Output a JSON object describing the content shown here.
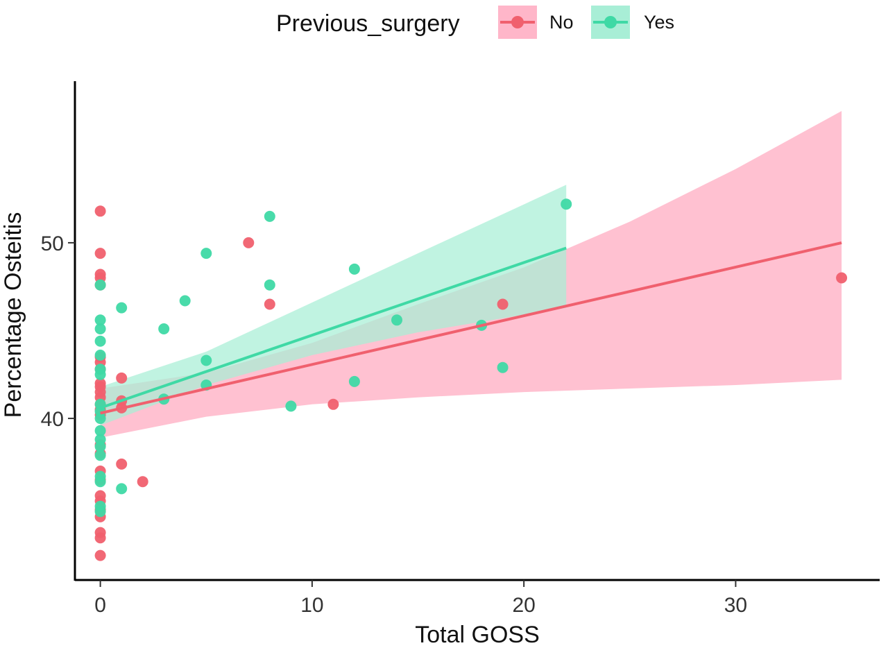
{
  "chart_data": {
    "type": "scatter",
    "title": "",
    "xlabel": "Total GOSS",
    "ylabel": "Percentage Osteitis",
    "xlim": [
      -1.2,
      36.8
    ],
    "ylim": [
      30.8,
      59.2
    ],
    "x_ticks": [
      0,
      10,
      20,
      30
    ],
    "x_tick_labels": [
      "0",
      "10",
      "20",
      "30"
    ],
    "y_ticks": [
      40,
      50
    ],
    "y_tick_labels": [
      "40",
      "50"
    ],
    "grid": false,
    "legend": {
      "title": "Previous_surgery",
      "position": "top",
      "entries": [
        "No",
        "Yes"
      ]
    },
    "series": [
      {
        "name": "No",
        "color": "#F0606E",
        "band_color": "#FFB6C9",
        "points": [
          [
            0,
            51.8
          ],
          [
            0,
            49.4
          ],
          [
            0,
            48.2
          ],
          [
            0,
            48.0
          ],
          [
            0,
            47.6
          ],
          [
            0,
            43.5
          ],
          [
            0,
            43.2
          ],
          [
            0,
            42.8
          ],
          [
            0,
            42.0
          ],
          [
            0,
            41.8
          ],
          [
            0,
            41.5
          ],
          [
            0,
            41.2
          ],
          [
            0,
            40.8
          ],
          [
            0,
            40.5
          ],
          [
            0,
            40.2
          ],
          [
            0,
            38.5
          ],
          [
            0,
            38.0
          ],
          [
            0,
            37.0
          ],
          [
            0,
            36.5
          ],
          [
            0,
            35.6
          ],
          [
            0,
            35.3
          ],
          [
            0,
            34.8
          ],
          [
            0,
            34.4
          ],
          [
            0,
            33.5
          ],
          [
            0,
            33.2
          ],
          [
            0,
            32.2
          ],
          [
            1,
            42.3
          ],
          [
            1,
            41.0
          ],
          [
            1,
            40.6
          ],
          [
            1,
            37.4
          ],
          [
            2,
            36.4
          ],
          [
            7,
            50.0
          ],
          [
            8,
            46.5
          ],
          [
            11,
            40.8
          ],
          [
            19,
            46.5
          ],
          [
            35,
            48.0
          ]
        ],
        "fit": {
          "x": [
            0,
            35
          ],
          "y": [
            40.3,
            50.0
          ]
        },
        "ci_upper": [
          [
            0,
            41.7
          ],
          [
            5,
            42.6
          ],
          [
            10,
            44.3
          ],
          [
            15,
            46.5
          ],
          [
            20,
            48.6
          ],
          [
            25,
            51.2
          ],
          [
            30,
            54.2
          ],
          [
            35,
            57.5
          ]
        ],
        "ci_lower": [
          [
            0,
            38.9
          ],
          [
            5,
            40.1
          ],
          [
            10,
            40.8
          ],
          [
            15,
            41.2
          ],
          [
            20,
            41.5
          ],
          [
            25,
            41.7
          ],
          [
            30,
            41.9
          ],
          [
            35,
            42.2
          ]
        ]
      },
      {
        "name": "Yes",
        "color": "#3FD9A5",
        "band_color": "#A8EED6",
        "points": [
          [
            0,
            47.6
          ],
          [
            0,
            45.6
          ],
          [
            0,
            45.1
          ],
          [
            0,
            44.4
          ],
          [
            0,
            43.6
          ],
          [
            0,
            42.8
          ],
          [
            0,
            42.5
          ],
          [
            0,
            40.8
          ],
          [
            0,
            40.4
          ],
          [
            0,
            40.0
          ],
          [
            0,
            39.3
          ],
          [
            0,
            38.8
          ],
          [
            0,
            38.4
          ],
          [
            0,
            37.9
          ],
          [
            0,
            36.7
          ],
          [
            0,
            36.4
          ],
          [
            0,
            35.0
          ],
          [
            0,
            34.7
          ],
          [
            1,
            46.3
          ],
          [
            1,
            36.0
          ],
          [
            3,
            45.1
          ],
          [
            3,
            41.1
          ],
          [
            4,
            46.7
          ],
          [
            5,
            49.4
          ],
          [
            5,
            43.3
          ],
          [
            5,
            41.9
          ],
          [
            8,
            51.5
          ],
          [
            8,
            47.6
          ],
          [
            9,
            40.7
          ],
          [
            12,
            48.5
          ],
          [
            12,
            42.1
          ],
          [
            14,
            45.6
          ],
          [
            18,
            45.3
          ],
          [
            19,
            42.9
          ],
          [
            22,
            52.2
          ]
        ],
        "fit": {
          "x": [
            0,
            22
          ],
          "y": [
            40.6,
            49.7
          ]
        },
        "ci_upper": [
          [
            0,
            41.8
          ],
          [
            5,
            43.8
          ],
          [
            10,
            46.6
          ],
          [
            15,
            49.4
          ],
          [
            22,
            53.3
          ]
        ],
        "ci_lower": [
          [
            0,
            39.6
          ],
          [
            5,
            41.9
          ],
          [
            10,
            43.6
          ],
          [
            15,
            44.9
          ],
          [
            22,
            46.3
          ]
        ]
      }
    ]
  }
}
